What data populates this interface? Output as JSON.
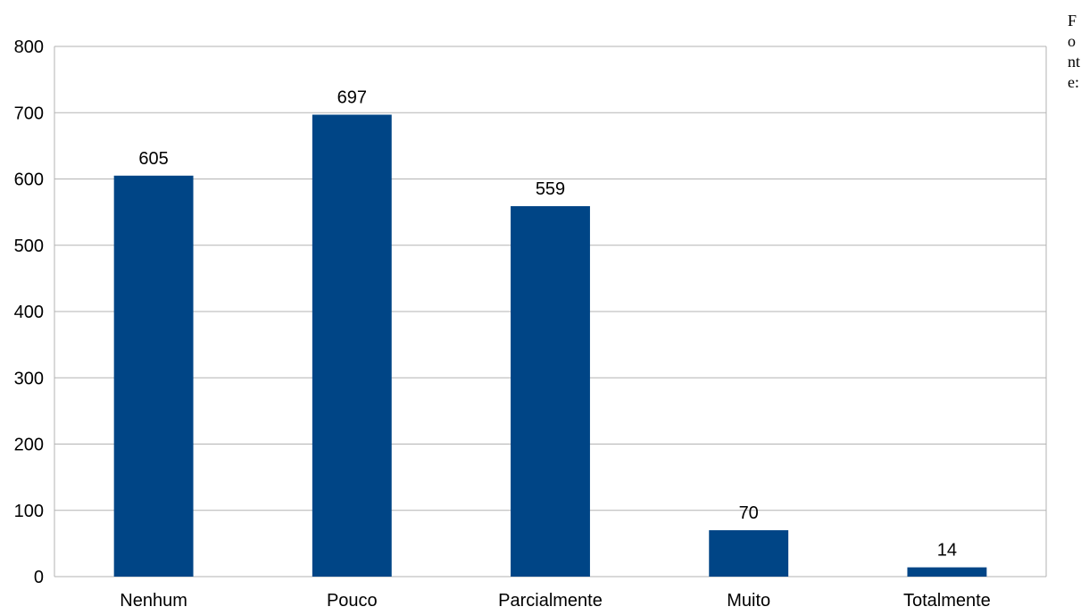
{
  "chart_data": {
    "type": "bar",
    "categories": [
      "Nenhum",
      "Pouco",
      "Parcialmente",
      "Muito",
      "Totalmente"
    ],
    "values": [
      605,
      697,
      559,
      70,
      14
    ],
    "data_labels": [
      "605",
      "697",
      "559",
      "70",
      "14"
    ],
    "y_ticks": [
      0,
      100,
      200,
      300,
      400,
      500,
      600,
      700,
      800
    ],
    "ylim": [
      0,
      800
    ],
    "grid": true,
    "legend": "none",
    "title": "",
    "xlabel": "",
    "ylabel": ""
  },
  "colors": {
    "bar": "#004586",
    "grid": "#b3b3b3",
    "axis": "#b3b3b3",
    "text": "#000000"
  },
  "side_note": "Fonte:"
}
